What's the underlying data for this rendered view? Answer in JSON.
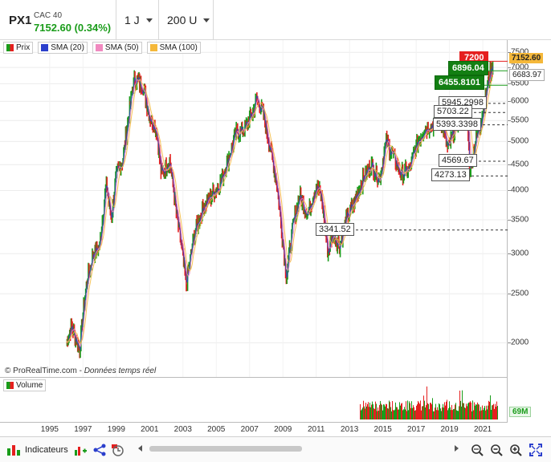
{
  "header": {
    "ticker": "PX1",
    "instrument_name": "CAC 40",
    "price_change": "7152.60 (0.34%)",
    "period": "1 J",
    "units": "200 U"
  },
  "legend": [
    {
      "label": "Prix",
      "color": "#1a9c1a"
    },
    {
      "label": "SMA (20)",
      "color": "#2b3fcc"
    },
    {
      "label": "SMA (50)",
      "color": "#f08ac0"
    },
    {
      "label": "SMA (100)",
      "color": "#f5b83a"
    }
  ],
  "watermark": {
    "brand": "© ProRealTime.com",
    "note": "Données temps réel"
  },
  "volume": {
    "label": "Volume",
    "value_tag": "69M"
  },
  "price_tags": {
    "last": "7152.60",
    "sma": "6683.97",
    "alert": "7200",
    "green1": "6896.04",
    "green2": "6455.8101"
  },
  "levels": [
    {
      "label": "5945.2998",
      "value": 5945.2998
    },
    {
      "label": "5703.22",
      "value": 5703.22
    },
    {
      "label": "5393.3398",
      "value": 5393.3398
    },
    {
      "label": "4569.67",
      "value": 4569.67
    },
    {
      "label": "4273.13",
      "value": 4273.13
    },
    {
      "label": "3341.52",
      "value": 3341.52
    }
  ],
  "bottom": {
    "indicators_label": "Indicateurs"
  },
  "chart_data": {
    "type": "line",
    "title": "",
    "xlabel": "",
    "ylabel": "",
    "y_scale": "log",
    "ylim": [
      1750,
      7700
    ],
    "xlim": [
      1992.5,
      2022.2
    ],
    "x_ticks": [
      "1995",
      "1997",
      "1999",
      "2001",
      "2003",
      "2005",
      "2007",
      "2009",
      "2011",
      "2013",
      "2015",
      "2017",
      "2019",
      "2021"
    ],
    "y_ticks": [
      "7500",
      "7000",
      "6500",
      "6000",
      "5500",
      "5000",
      "4500",
      "4000",
      "3500",
      "3000",
      "2500",
      "2000"
    ],
    "series": [
      {
        "name": "Prix",
        "x": [
          1996.0,
          1996.3,
          1996.8,
          1997.2,
          1997.6,
          1998.0,
          1998.4,
          1998.7,
          1999.0,
          1999.4,
          1999.8,
          2000.1,
          2000.6,
          2001.0,
          2001.4,
          2001.7,
          2002.2,
          2002.6,
          2002.9,
          2003.2,
          2003.7,
          2004.2,
          2004.7,
          2005.2,
          2005.7,
          2006.2,
          2006.7,
          2007.2,
          2007.4,
          2007.8,
          2008.2,
          2008.6,
          2008.9,
          2009.2,
          2009.6,
          2010.0,
          2010.5,
          2011.0,
          2011.3,
          2011.7,
          2012.0,
          2012.4,
          2012.8,
          2013.3,
          2013.8,
          2014.3,
          2014.8,
          2015.2,
          2015.6,
          2016.1,
          2016.6,
          2017.1,
          2017.5,
          2018.0,
          2018.5,
          2018.9,
          2019.3,
          2019.8,
          2020.05,
          2020.2,
          2020.5,
          2020.9,
          2021.3,
          2021.6
        ],
        "y": [
          2000,
          2150,
          1950,
          2600,
          3000,
          3100,
          4100,
          3500,
          4300,
          4600,
          5800,
          6700,
          6400,
          5600,
          5300,
          4300,
          4600,
          3600,
          3100,
          2600,
          3300,
          3700,
          3900,
          4100,
          4600,
          5200,
          5300,
          5700,
          6100,
          5700,
          4900,
          4200,
          3400,
          2700,
          3400,
          3900,
          3600,
          4100,
          3900,
          3000,
          3300,
          3100,
          3500,
          3800,
          4200,
          4500,
          4200,
          5000,
          4700,
          4300,
          4400,
          5000,
          5300,
          5400,
          5500,
          4800,
          5300,
          5700,
          6000,
          4400,
          4900,
          5500,
          6500,
          7152.6
        ]
      }
    ]
  }
}
